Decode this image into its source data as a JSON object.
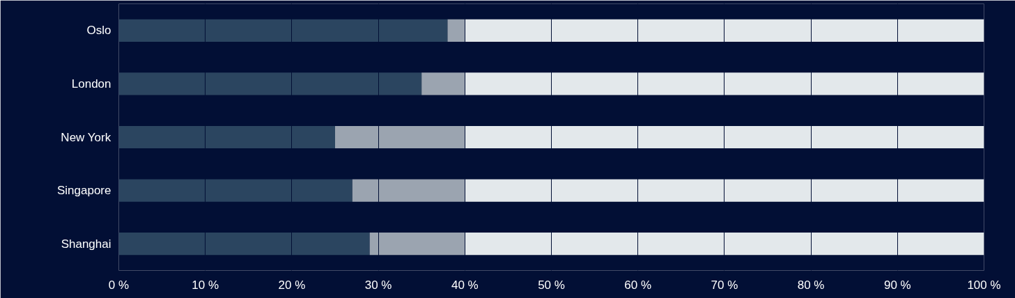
{
  "chart_data": {
    "type": "bar",
    "orientation": "horizontal",
    "stacked": true,
    "categories": [
      "Oslo",
      "London",
      "New York",
      "Singapore",
      "Shanghai"
    ],
    "series": [
      {
        "color": "#2b4560",
        "values": [
          38,
          35,
          25,
          27,
          29
        ]
      },
      {
        "color": "#9ba4b0",
        "values": [
          2,
          5,
          15,
          13,
          11
        ]
      },
      {
        "color": "#e3e8eb",
        "values": [
          60,
          60,
          60,
          60,
          60
        ]
      }
    ],
    "xlim": [
      0,
      100
    ],
    "xticks": [
      {
        "value": 0,
        "label": "0 %"
      },
      {
        "value": 10,
        "label": "10 %"
      },
      {
        "value": 20,
        "label": "20 %"
      },
      {
        "value": 30,
        "label": "30 %"
      },
      {
        "value": 40,
        "label": "40 %"
      },
      {
        "value": 50,
        "label": "50 %"
      },
      {
        "value": 60,
        "label": "60 %"
      },
      {
        "value": 70,
        "label": "70 %"
      },
      {
        "value": 80,
        "label": "80 %"
      },
      {
        "value": 90,
        "label": "90 %"
      },
      {
        "value": 100,
        "label": "100 %"
      }
    ],
    "grid": "x"
  }
}
